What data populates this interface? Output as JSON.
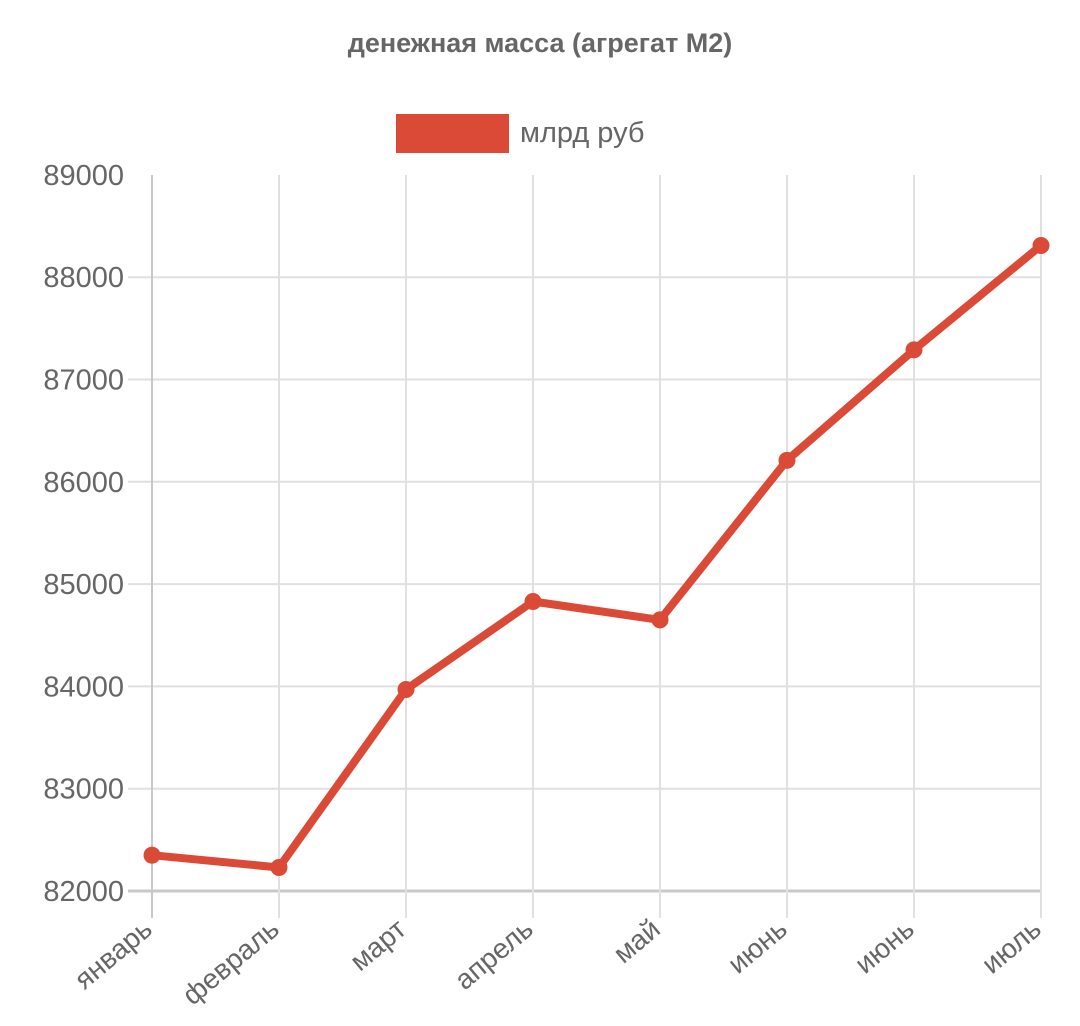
{
  "chart_data": {
    "type": "line",
    "title": "денежная масса (агрегат М2)",
    "xlabel": "",
    "ylabel": "",
    "categories": [
      "январь",
      "февраль",
      "март",
      "апрель",
      "май",
      "июнь",
      "июнь",
      "июль"
    ],
    "series": [
      {
        "name": "млрд руб",
        "color": "#DB4A36",
        "values": [
          82350,
          82230,
          83970,
          84830,
          84650,
          86210,
          87290,
          88310
        ]
      }
    ],
    "ylim": [
      82000,
      89000
    ],
    "yticks": [
      82000,
      83000,
      84000,
      85000,
      86000,
      87000,
      88000,
      89000
    ],
    "grid": true,
    "legend_position": "top",
    "x_label_rotation": -40
  },
  "colors": {
    "line": "#DB4A36",
    "grid": "#E0E0E0",
    "axis": "#C8C8C8",
    "text": "#666666"
  }
}
